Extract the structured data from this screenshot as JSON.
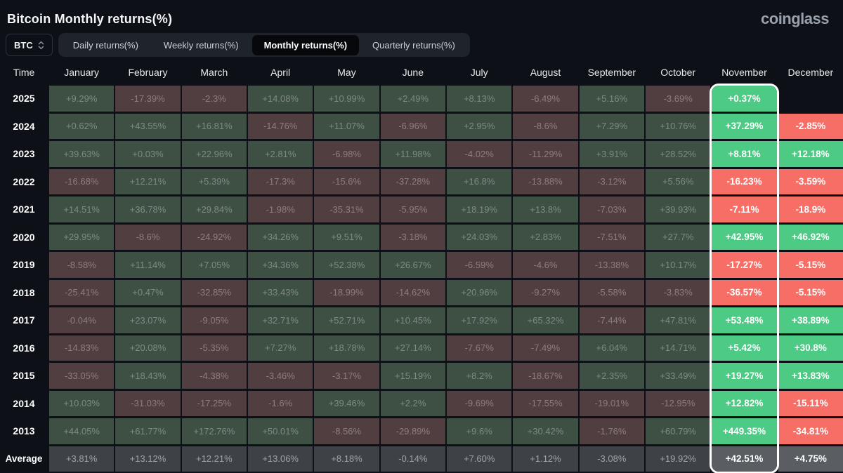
{
  "page": {
    "title": "Bitcoin Monthly returns(%)",
    "logo": "coinglass"
  },
  "controls": {
    "coin_selector": {
      "value": "BTC",
      "icon": "up-down-chevron-icon"
    },
    "tabs": [
      {
        "label": "Daily returns(%)",
        "active": false
      },
      {
        "label": "Weekly returns(%)",
        "active": false
      },
      {
        "label": "Monthly returns(%)",
        "active": true
      },
      {
        "label": "Quarterly returns(%)",
        "active": false
      }
    ]
  },
  "colors": {
    "background": "#0d1016",
    "bright_green": "#4dca84",
    "bright_red": "#f76e66",
    "muted_green": "#3e4f43",
    "muted_red": "#513e40",
    "avg_gray": "#3e4247",
    "avg_bright_gray": "#5a5e63",
    "highlight_border": "#ffffff"
  },
  "chart_data": {
    "type": "heatmap",
    "title": "Bitcoin Monthly returns(%)",
    "row_header": "Time",
    "columns": [
      "January",
      "February",
      "March",
      "April",
      "May",
      "June",
      "July",
      "August",
      "September",
      "October",
      "November",
      "December"
    ],
    "highlight_column": "November",
    "rows": [
      {
        "label": "2025",
        "values": [
          "+9.29%",
          "-17.39%",
          "-2.3%",
          "+14.08%",
          "+10.99%",
          "+2.49%",
          "+8.13%",
          "-6.49%",
          "+5.16%",
          "-3.69%",
          "+0.37%",
          ""
        ]
      },
      {
        "label": "2024",
        "values": [
          "+0.62%",
          "+43.55%",
          "+16.81%",
          "-14.76%",
          "+11.07%",
          "-6.96%",
          "+2.95%",
          "-8.6%",
          "+7.29%",
          "+10.76%",
          "+37.29%",
          "-2.85%"
        ]
      },
      {
        "label": "2023",
        "values": [
          "+39.63%",
          "+0.03%",
          "+22.96%",
          "+2.81%",
          "-6.98%",
          "+11.98%",
          "-4.02%",
          "-11.29%",
          "+3.91%",
          "+28.52%",
          "+8.81%",
          "+12.18%"
        ]
      },
      {
        "label": "2022",
        "values": [
          "-16.68%",
          "+12.21%",
          "+5.39%",
          "-17.3%",
          "-15.6%",
          "-37.28%",
          "+16.8%",
          "-13.88%",
          "-3.12%",
          "+5.56%",
          "-16.23%",
          "-3.59%"
        ]
      },
      {
        "label": "2021",
        "values": [
          "+14.51%",
          "+36.78%",
          "+29.84%",
          "-1.98%",
          "-35.31%",
          "-5.95%",
          "+18.19%",
          "+13.8%",
          "-7.03%",
          "+39.93%",
          "-7.11%",
          "-18.9%"
        ]
      },
      {
        "label": "2020",
        "values": [
          "+29.95%",
          "-8.6%",
          "-24.92%",
          "+34.26%",
          "+9.51%",
          "-3.18%",
          "+24.03%",
          "+2.83%",
          "-7.51%",
          "+27.7%",
          "+42.95%",
          "+46.92%"
        ]
      },
      {
        "label": "2019",
        "values": [
          "-8.58%",
          "+11.14%",
          "+7.05%",
          "+34.36%",
          "+52.38%",
          "+26.67%",
          "-6.59%",
          "-4.6%",
          "-13.38%",
          "+10.17%",
          "-17.27%",
          "-5.15%"
        ]
      },
      {
        "label": "2018",
        "values": [
          "-25.41%",
          "+0.47%",
          "-32.85%",
          "+33.43%",
          "-18.99%",
          "-14.62%",
          "+20.96%",
          "-9.27%",
          "-5.58%",
          "-3.83%",
          "-36.57%",
          "-5.15%"
        ]
      },
      {
        "label": "2017",
        "values": [
          "-0.04%",
          "+23.07%",
          "-9.05%",
          "+32.71%",
          "+52.71%",
          "+10.45%",
          "+17.92%",
          "+65.32%",
          "-7.44%",
          "+47.81%",
          "+53.48%",
          "+38.89%"
        ]
      },
      {
        "label": "2016",
        "values": [
          "-14.83%",
          "+20.08%",
          "-5.35%",
          "+7.27%",
          "+18.78%",
          "+27.14%",
          "-7.67%",
          "-7.49%",
          "+6.04%",
          "+14.71%",
          "+5.42%",
          "+30.8%"
        ]
      },
      {
        "label": "2015",
        "values": [
          "-33.05%",
          "+18.43%",
          "-4.38%",
          "-3.46%",
          "-3.17%",
          "+15.19%",
          "+8.2%",
          "-18.67%",
          "+2.35%",
          "+33.49%",
          "+19.27%",
          "+13.83%"
        ]
      },
      {
        "label": "2014",
        "values": [
          "+10.03%",
          "-31.03%",
          "-17.25%",
          "-1.6%",
          "+39.46%",
          "+2.2%",
          "-9.69%",
          "-17.55%",
          "-19.01%",
          "-12.95%",
          "+12.82%",
          "-15.11%"
        ]
      },
      {
        "label": "2013",
        "values": [
          "+44.05%",
          "+61.77%",
          "+172.76%",
          "+50.01%",
          "-8.56%",
          "-29.89%",
          "+9.6%",
          "+30.42%",
          "-1.76%",
          "+60.79%",
          "+449.35%",
          "-34.81%"
        ]
      },
      {
        "label": "Average",
        "values": [
          "+3.81%",
          "+13.12%",
          "+12.21%",
          "+13.06%",
          "+8.18%",
          "-0.14%",
          "+7.60%",
          "+1.12%",
          "-3.08%",
          "+19.92%",
          "+42.51%",
          "+4.75%"
        ]
      }
    ]
  }
}
